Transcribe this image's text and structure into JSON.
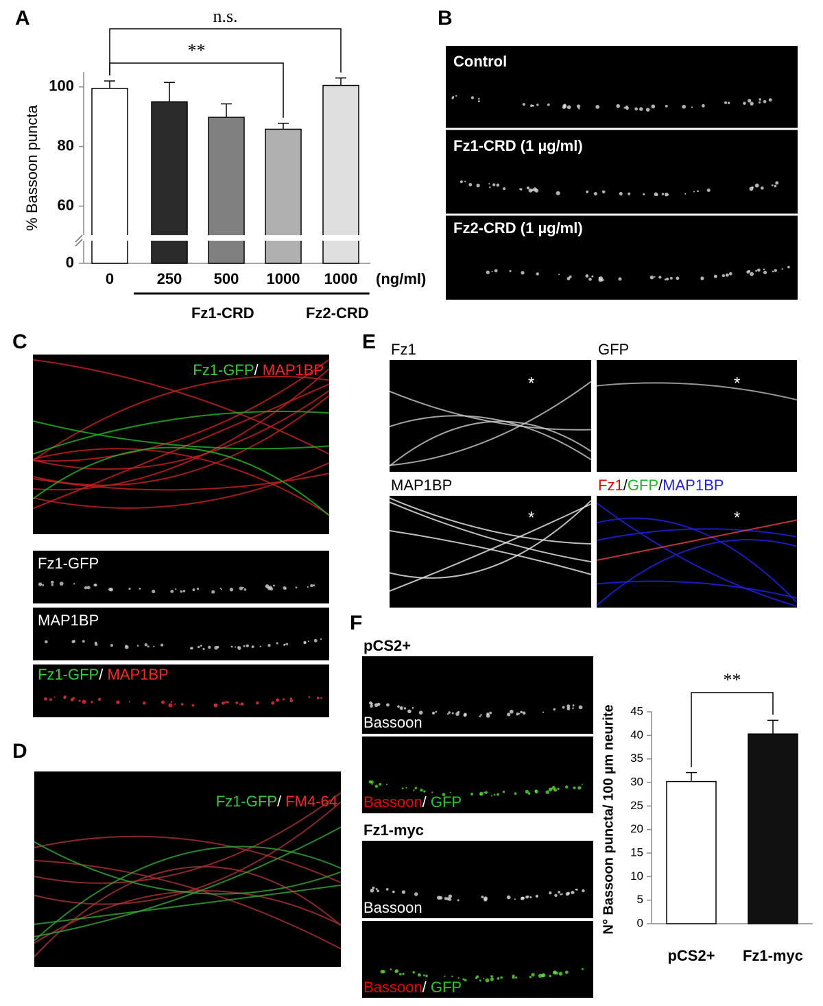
{
  "panel_letters": [
    "A",
    "B",
    "C",
    "D",
    "E",
    "F"
  ],
  "chart_data": [
    {
      "type": "bar",
      "y_label": "% Bassoon puncta",
      "categories": [
        "0",
        "250",
        "500",
        "1000",
        "1000"
      ],
      "x_unit": "(ng/ml)",
      "values": [
        99.5,
        95,
        89.8,
        85.8,
        100.5
      ],
      "errors": [
        2.5,
        6.5,
        4.5,
        2,
        2.5
      ],
      "colors": [
        "#ffffff",
        "#2b2b2b",
        "#808080",
        "#b0b0b0",
        "#dedede"
      ],
      "ylim": [
        0,
        105
      ],
      "ybreak": 50,
      "yticks": [
        0,
        60,
        80,
        100
      ],
      "groups": [
        {
          "label": "Fz1-CRD",
          "categories": [
            1,
            2,
            3
          ]
        },
        {
          "label": "Fz2-CRD",
          "categories": [
            4
          ]
        }
      ],
      "significance": [
        {
          "label": "**",
          "from": 0,
          "to": 3
        },
        {
          "label": "n.s.",
          "from": 0,
          "to": 4
        }
      ]
    },
    {
      "type": "bar",
      "y_label": "N° Bassoon puncta/ 100 µm neurite",
      "categories": [
        "pCS2+",
        "Fz1-myc"
      ],
      "values": [
        30.2,
        40.3
      ],
      "errors": [
        1.9,
        2.9
      ],
      "colors": [
        "#ffffff",
        "#111111"
      ],
      "ylim": [
        0,
        45
      ],
      "yticks": [
        0,
        5,
        10,
        15,
        20,
        25,
        30,
        35,
        40,
        45
      ],
      "significance": [
        {
          "label": "**",
          "from": 0,
          "to": 1
        }
      ]
    }
  ],
  "panels": {
    "b": [
      "Control",
      "Fz1-CRD (1 µg/ml)",
      "Fz2-CRD (1 µg/ml)"
    ],
    "c": {
      "merge_top": [
        "Fz1-GFP",
        "/ ",
        "MAP1BP"
      ],
      "strip1": "Fz1-GFP",
      "strip2": "MAP1BP",
      "merge_strip": [
        "Fz1-GFP",
        "/ ",
        "MAP1BP"
      ]
    },
    "d": {
      "merge": [
        "Fz1-GFP",
        "/ ",
        "FM4-64"
      ]
    },
    "e": {
      "fz1": "Fz1",
      "gfp": "GFP",
      "map1bp": "MAP1BP",
      "merge": [
        "Fz1",
        "/",
        "GFP",
        "/",
        "MAP1BP"
      ],
      "star": "*"
    },
    "f": {
      "group1": "pCS2+",
      "group2": "Fz1-myc",
      "bassoon": "Bassoon",
      "merge": [
        "Bassoon",
        "/ ",
        "GFP"
      ]
    }
  }
}
